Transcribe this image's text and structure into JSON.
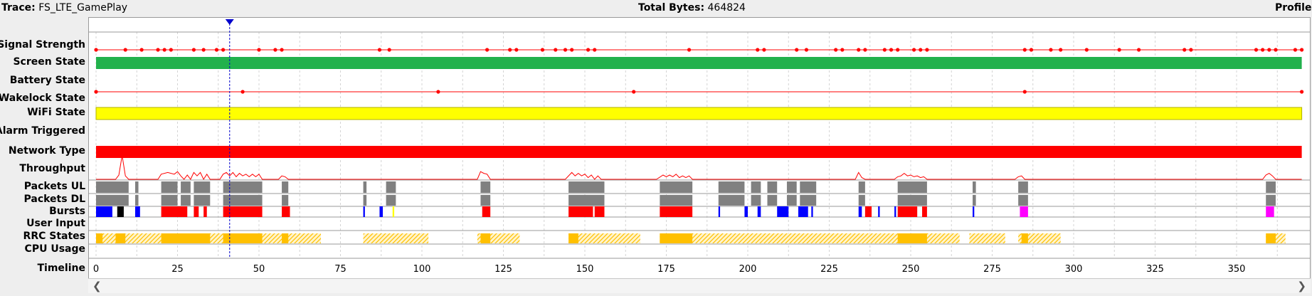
{
  "header": {
    "trace_label": "Trace:",
    "trace_value": "FS_LTE_GamePlay",
    "total_label": "Total Bytes:",
    "total_value": "464824",
    "profile_label": "Profile:"
  },
  "rows": [
    "Signal Strength",
    "Screen State",
    "Battery State",
    "Wakelock State",
    "WiFi State",
    "Alarm Triggered",
    "Network Type",
    "Throughput",
    "Packets UL",
    "Packets DL",
    "Bursts",
    "User Input",
    "RRC States",
    "CPU Usage",
    "Timeline"
  ],
  "timeline": {
    "min": 0,
    "max": 370,
    "ticks": [
      0,
      25,
      50,
      75,
      100,
      125,
      150,
      175,
      200,
      225,
      250,
      275,
      300,
      325,
      350
    ],
    "cursor": 41
  },
  "colors": {
    "screen_state": "#22b14c",
    "wifi_state": "#ffff00",
    "network_type": "#ff0000",
    "signal_line": "#ff0000",
    "packets": "#808080",
    "burst_blue": "#0000ff",
    "burst_red": "#ff0000",
    "burst_black": "#000000",
    "burst_magenta": "#ff00ff",
    "burst_yellow": "#ffff00",
    "rrc": "#ffc000",
    "cursor": "#0000cc"
  },
  "tracks": {
    "signal_points": [
      0,
      9,
      14,
      19,
      21,
      23,
      30,
      33,
      37,
      39,
      50,
      55,
      57,
      87,
      90,
      120,
      127,
      129,
      137,
      141,
      144,
      146,
      151,
      153,
      182,
      203,
      205,
      215,
      218,
      227,
      229,
      234,
      236,
      242,
      244,
      246,
      251,
      253,
      255,
      285,
      287,
      293,
      296,
      304,
      314,
      320,
      334,
      336,
      356,
      358,
      360,
      362,
      368,
      370
    ],
    "battery_points": [
      0,
      45,
      105,
      165,
      285,
      370
    ],
    "packet_groups": [
      [
        0,
        10
      ],
      [
        12,
        13
      ],
      [
        20,
        25
      ],
      [
        26,
        29
      ],
      [
        30,
        35
      ],
      [
        39,
        51
      ],
      [
        57,
        59
      ],
      [
        82,
        83
      ],
      [
        89,
        92
      ],
      [
        118,
        121
      ],
      [
        145,
        156
      ],
      [
        173,
        183
      ],
      [
        191,
        199
      ],
      [
        201,
        204
      ],
      [
        206,
        209
      ],
      [
        212,
        215
      ],
      [
        216,
        221
      ],
      [
        234,
        236
      ],
      [
        246,
        255
      ],
      [
        269,
        270
      ],
      [
        283,
        286
      ],
      [
        359,
        362
      ]
    ],
    "bursts": [
      {
        "s": 0,
        "e": 5,
        "c": "burst_blue"
      },
      {
        "s": 6.5,
        "e": 8.5,
        "c": "burst_black"
      },
      {
        "s": 12,
        "e": 13.5,
        "c": "burst_blue"
      },
      {
        "s": 20,
        "e": 28,
        "c": "burst_red"
      },
      {
        "s": 30,
        "e": 31.5,
        "c": "burst_red"
      },
      {
        "s": 33,
        "e": 34,
        "c": "burst_red"
      },
      {
        "s": 39,
        "e": 51,
        "c": "burst_red"
      },
      {
        "s": 57,
        "e": 59.5,
        "c": "burst_red"
      },
      {
        "s": 82,
        "e": 82.5,
        "c": "burst_blue"
      },
      {
        "s": 87,
        "e": 88,
        "c": "burst_blue"
      },
      {
        "s": 91,
        "e": 91.5,
        "c": "burst_yellow"
      },
      {
        "s": 118.5,
        "e": 121,
        "c": "burst_red"
      },
      {
        "s": 145,
        "e": 152.5,
        "c": "burst_red"
      },
      {
        "s": 153,
        "e": 156,
        "c": "burst_red"
      },
      {
        "s": 173,
        "e": 183,
        "c": "burst_red"
      },
      {
        "s": 191,
        "e": 191.5,
        "c": "burst_blue"
      },
      {
        "s": 199,
        "e": 200,
        "c": "burst_blue"
      },
      {
        "s": 203,
        "e": 204,
        "c": "burst_blue"
      },
      {
        "s": 209,
        "e": 212.5,
        "c": "burst_blue"
      },
      {
        "s": 215.5,
        "e": 218.5,
        "c": "burst_blue"
      },
      {
        "s": 219.5,
        "e": 220,
        "c": "burst_blue"
      },
      {
        "s": 234,
        "e": 235,
        "c": "burst_blue"
      },
      {
        "s": 236,
        "e": 238,
        "c": "burst_red"
      },
      {
        "s": 240,
        "e": 240.5,
        "c": "burst_blue"
      },
      {
        "s": 245,
        "e": 245.5,
        "c": "burst_blue"
      },
      {
        "s": 246,
        "e": 252,
        "c": "burst_red"
      },
      {
        "s": 253.5,
        "e": 255,
        "c": "burst_red"
      },
      {
        "s": 269,
        "e": 269.5,
        "c": "burst_blue"
      },
      {
        "s": 283.5,
        "e": 286,
        "c": "burst_magenta"
      },
      {
        "s": 359,
        "e": 361.5,
        "c": "burst_magenta"
      }
    ],
    "rrc_segments": [
      [
        0,
        69
      ],
      [
        82,
        102
      ],
      [
        117,
        130
      ],
      [
        145,
        167
      ],
      [
        173,
        265
      ],
      [
        268,
        279
      ],
      [
        283,
        296
      ],
      [
        359,
        365
      ]
    ],
    "rrc_dense": [
      [
        0,
        2
      ],
      [
        6,
        9
      ],
      [
        20,
        35
      ],
      [
        39,
        51
      ],
      [
        57,
        59
      ],
      [
        118,
        121
      ],
      [
        145,
        148
      ],
      [
        173,
        183
      ],
      [
        246,
        255
      ],
      [
        284,
        286
      ],
      [
        359,
        362
      ]
    ],
    "throughput_points": [
      [
        0,
        0
      ],
      [
        6,
        0
      ],
      [
        7,
        5
      ],
      [
        8,
        28
      ],
      [
        9,
        4
      ],
      [
        10,
        0
      ],
      [
        19,
        0
      ],
      [
        20,
        6
      ],
      [
        22,
        8
      ],
      [
        24,
        6
      ],
      [
        25,
        9
      ],
      [
        26,
        4
      ],
      [
        27,
        0
      ],
      [
        28,
        5
      ],
      [
        29,
        0
      ],
      [
        30,
        8
      ],
      [
        31,
        4
      ],
      [
        32,
        8
      ],
      [
        33,
        0
      ],
      [
        34,
        6
      ],
      [
        35,
        0
      ],
      [
        38,
        0
      ],
      [
        39,
        6
      ],
      [
        40,
        8
      ],
      [
        41,
        4
      ],
      [
        42,
        8
      ],
      [
        43,
        3
      ],
      [
        44,
        7
      ],
      [
        45,
        4
      ],
      [
        46,
        6
      ],
      [
        47,
        3
      ],
      [
        48,
        6
      ],
      [
        49,
        3
      ],
      [
        50,
        6
      ],
      [
        51,
        0
      ],
      [
        56,
        0
      ],
      [
        57,
        4
      ],
      [
        58,
        3
      ],
      [
        59,
        0
      ],
      [
        117,
        0
      ],
      [
        118,
        9
      ],
      [
        119,
        7
      ],
      [
        120,
        6
      ],
      [
        121,
        0
      ],
      [
        144,
        0
      ],
      [
        146,
        8
      ],
      [
        147,
        4
      ],
      [
        148,
        7
      ],
      [
        149,
        4
      ],
      [
        150,
        6
      ],
      [
        151,
        2
      ],
      [
        152,
        5
      ],
      [
        153,
        0
      ],
      [
        154,
        4
      ],
      [
        155,
        0
      ],
      [
        172,
        0
      ],
      [
        174,
        5
      ],
      [
        175,
        3
      ],
      [
        176,
        5
      ],
      [
        177,
        3
      ],
      [
        178,
        6
      ],
      [
        179,
        2
      ],
      [
        180,
        4
      ],
      [
        181,
        2
      ],
      [
        182,
        4
      ],
      [
        183,
        0
      ],
      [
        233,
        0
      ],
      [
        234,
        8
      ],
      [
        235,
        2
      ],
      [
        236,
        0
      ],
      [
        245,
        0
      ],
      [
        246,
        3
      ],
      [
        247,
        4
      ],
      [
        248,
        7
      ],
      [
        249,
        4
      ],
      [
        250,
        5
      ],
      [
        251,
        3
      ],
      [
        252,
        4
      ],
      [
        253,
        2
      ],
      [
        254,
        3
      ],
      [
        255,
        0
      ],
      [
        282,
        0
      ],
      [
        283,
        3
      ],
      [
        284,
        4
      ],
      [
        285,
        0
      ],
      [
        358,
        0
      ],
      [
        359,
        5
      ],
      [
        360,
        7
      ],
      [
        361,
        4
      ],
      [
        362,
        0
      ],
      [
        370,
        0
      ]
    ]
  }
}
